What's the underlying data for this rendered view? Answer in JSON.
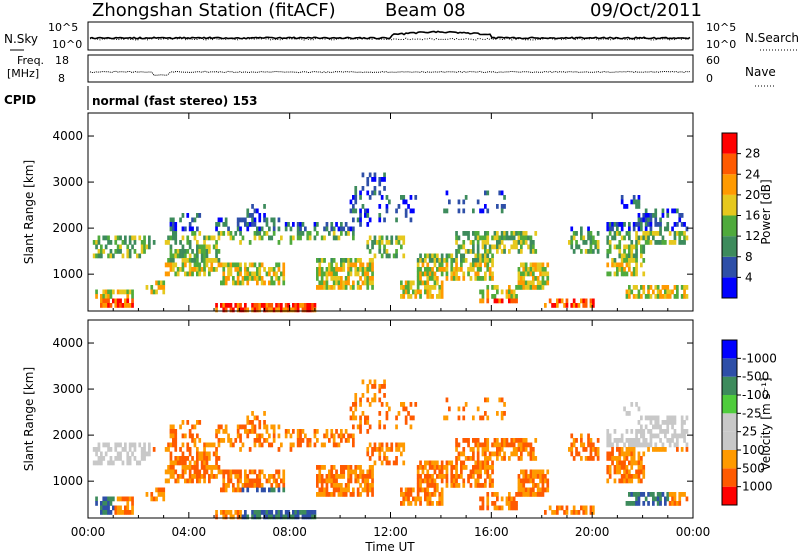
{
  "header": {
    "station": "Zhongshan Station (fitACF)",
    "beam": "Beam 08",
    "date": "09/Oct/2011"
  },
  "info_panels": {
    "noise_left_label": "N.Sky",
    "noise_right_label": "N.Search",
    "noise_ticks_left": [
      "10^5",
      "10^0"
    ],
    "noise_ticks_right": [
      "10^5",
      "10^0"
    ],
    "freq_label_1": "Freq.",
    "freq_label_2": "[MHz]",
    "freq_ticks": [
      "18",
      "8"
    ],
    "nave_label": "Nave",
    "nave_ticks": [
      "60",
      "0"
    ],
    "cpid_label": "CPID",
    "cpid_text": "normal (fast stereo) 153"
  },
  "colors": {
    "power_scale": [
      "#0000ff",
      "#2e4fa8",
      "#3d8b5c",
      "#4faa3c",
      "#e6c81e",
      "#ff9a00",
      "#ff5a00",
      "#ff0000"
    ],
    "velocity_scale": [
      "#ff0000",
      "#ff5a00",
      "#ff9a00",
      "#c8c8c8",
      "#c8c8c8",
      "#4fcc3c",
      "#3d8b5c",
      "#2e4fa8",
      "#0000ff"
    ]
  },
  "chart_data": [
    {
      "type": "heatmap",
      "name": "Power",
      "ylabel": "Slant Range [km]",
      "ylim": [
        200,
        4500
      ],
      "yticks": [
        1000,
        2000,
        3000,
        4000
      ],
      "xlim": [
        0,
        24
      ],
      "colorbar_label": "Power [dB]",
      "colorbar_ticks": [
        4,
        8,
        12,
        16,
        20,
        24,
        28
      ],
      "colorbar_range": [
        0,
        32
      ]
    },
    {
      "type": "heatmap",
      "name": "Velocity",
      "ylabel": "Slant Range [km]",
      "xlabel": "Time UT",
      "ylim": [
        200,
        4500
      ],
      "yticks": [
        1000,
        2000,
        3000,
        4000
      ],
      "xticks": [
        "00:00",
        "04:00",
        "08:00",
        "12:00",
        "16:00",
        "20:00",
        "00:00"
      ],
      "xlim": [
        0,
        24
      ],
      "colorbar_label": "Velocity [m s⁻¹]",
      "colorbar_ticks": [
        "1000",
        "500",
        "100",
        "25",
        "-25",
        "-100",
        "-500",
        "-1000"
      ]
    }
  ]
}
